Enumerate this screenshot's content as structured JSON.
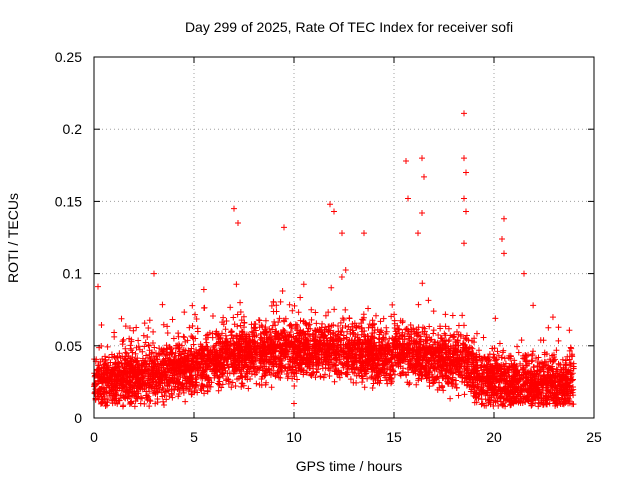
{
  "chart_data": {
    "type": "scatter",
    "title": "Day 299 of 2025, Rate Of TEC Index for receiver sofi",
    "xlabel": "GPS time / hours",
    "ylabel": "ROTI / TECUs",
    "xlim": [
      0,
      25
    ],
    "ylim": [
      0,
      0.25
    ],
    "xticks": [
      "0",
      "5",
      "10",
      "15",
      "20",
      "25"
    ],
    "yticks": [
      "0",
      "0.05",
      "0.1",
      "0.15",
      "0.2",
      "0.25"
    ],
    "grid": true,
    "legend": "none",
    "series": [
      {
        "name": "ROTI",
        "marker": "+",
        "color": "#ff0000",
        "x_range": [
          0,
          24
        ],
        "typical_range": [
          0.02,
          0.07
        ],
        "notable_points": [
          {
            "x": 7.0,
            "y": 0.145
          },
          {
            "x": 7.2,
            "y": 0.135
          },
          {
            "x": 9.5,
            "y": 0.132
          },
          {
            "x": 11.8,
            "y": 0.148
          },
          {
            "x": 12.0,
            "y": 0.143
          },
          {
            "x": 12.4,
            "y": 0.128
          },
          {
            "x": 13.5,
            "y": 0.128
          },
          {
            "x": 15.6,
            "y": 0.178
          },
          {
            "x": 15.7,
            "y": 0.152
          },
          {
            "x": 16.2,
            "y": 0.128
          },
          {
            "x": 16.4,
            "y": 0.18
          },
          {
            "x": 16.5,
            "y": 0.167
          },
          {
            "x": 16.4,
            "y": 0.142
          },
          {
            "x": 18.5,
            "y": 0.211
          },
          {
            "x": 18.5,
            "y": 0.18
          },
          {
            "x": 18.6,
            "y": 0.17
          },
          {
            "x": 18.5,
            "y": 0.152
          },
          {
            "x": 18.6,
            "y": 0.143
          },
          {
            "x": 18.5,
            "y": 0.121
          },
          {
            "x": 20.5,
            "y": 0.138
          },
          {
            "x": 20.4,
            "y": 0.124
          },
          {
            "x": 20.5,
            "y": 0.114
          },
          {
            "x": 21.5,
            "y": 0.1
          },
          {
            "x": 3.0,
            "y": 0.1
          },
          {
            "x": 0.2,
            "y": 0.091
          },
          {
            "x": 10.0,
            "y": 0.01
          },
          {
            "x": 3.5,
            "y": 0.009
          }
        ]
      }
    ]
  }
}
